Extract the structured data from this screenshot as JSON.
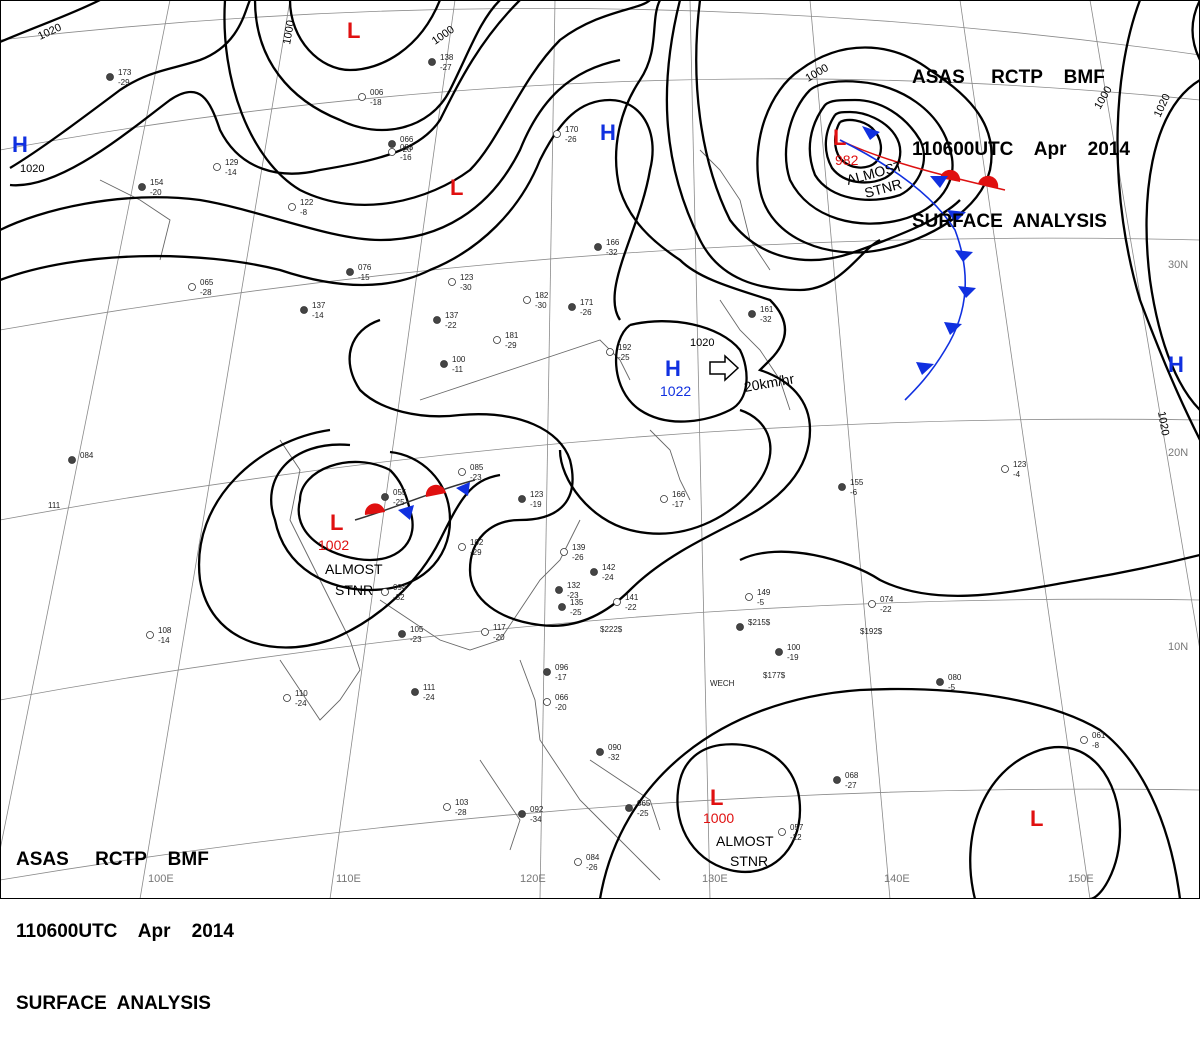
{
  "header": {
    "line1": "ASAS     RCTP    BMF",
    "line2": "110600UTC    Apr    2014",
    "line3": "SURFACE  ANALYSIS"
  },
  "longitude_labels": [
    "100E",
    "110E",
    "120E",
    "130E",
    "140E",
    "150E"
  ],
  "latitude_labels": [
    "30N",
    "20N",
    "10N"
  ],
  "isobar_labels": [
    "1020",
    "1000",
    "1000",
    "1000",
    "1020",
    "1020",
    "1020",
    "1000",
    "1020"
  ],
  "pressure_centers": [
    {
      "type": "L",
      "value": "982"
    },
    {
      "type": "L",
      "value": "1002"
    },
    {
      "type": "L",
      "value": "1000"
    },
    {
      "type": "H",
      "value": "1022"
    },
    {
      "type": "L",
      "value": ""
    },
    {
      "type": "L",
      "value": ""
    },
    {
      "type": "L",
      "value": ""
    },
    {
      "type": "H",
      "value": ""
    },
    {
      "type": "H",
      "value": ""
    },
    {
      "type": "H",
      "value": ""
    }
  ],
  "annotations": {
    "almost_stnr": [
      "ALMOST",
      "STNR"
    ],
    "motion": "20km/hr"
  },
  "stations": [
    "173",
    "-29",
    "093",
    "-16",
    "066",
    "-20",
    "006",
    "-18",
    "138",
    "-27",
    "129",
    "-14",
    "154",
    "-20",
    "122",
    "-8",
    "076",
    "-15",
    "065",
    "-28",
    "137",
    "-14",
    "123",
    "-30",
    "137",
    "-22",
    "181",
    "-29",
    "100",
    "-11",
    "182",
    "-30",
    "171",
    "-26",
    "170",
    "-26",
    "166",
    "-32",
    "192",
    "-25",
    "161",
    "-32",
    "085",
    "-23",
    "055",
    "-25",
    "102",
    "-29",
    "123",
    "-19",
    "166",
    "-17",
    "084",
    "111",
    "108",
    "-14",
    "132",
    "-23",
    "139",
    "-26",
    "142",
    "-24",
    "141",
    "-22",
    "135",
    "-25",
    "117",
    "-20",
    "105",
    "-23",
    "094",
    "-32",
    "111",
    "-24",
    "110",
    "-24",
    "096",
    "-17",
    "066",
    "-20",
    "090",
    "-32",
    "103",
    "-28",
    "092",
    "-34",
    "084",
    "-26",
    "065",
    "-25",
    "057",
    "-22",
    "068",
    "-27",
    "149",
    "-5",
    "100",
    "-19",
    "074",
    "-22",
    "080",
    "-5",
    "061",
    "-8",
    "155",
    "-6",
    "123",
    "-4",
    "$215$",
    "$177$",
    "$192$",
    "$222$",
    "WECH"
  ]
}
